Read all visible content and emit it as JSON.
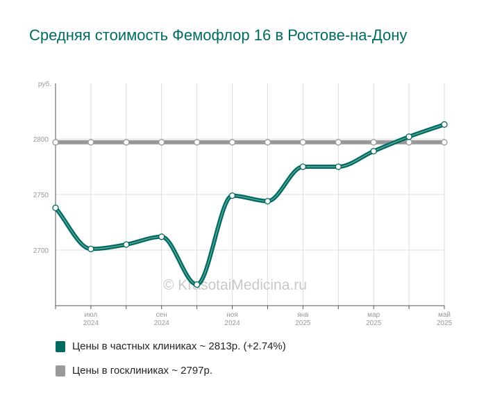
{
  "title": "Средняя стоимость Фемофлор 16 в Ростове-на-Дону",
  "watermark": "© KrasotaiMedicina.ru",
  "chart_data": {
    "type": "line",
    "ylabel": "руб.",
    "ylim": [
      2650,
      2850
    ],
    "yticks": [
      2700,
      2750,
      2800
    ],
    "x": [
      "2024-06",
      "2024-07",
      "2024-08",
      "2024-09",
      "2024-10",
      "2024-11",
      "2024-12",
      "2025-01",
      "2025-02",
      "2025-03",
      "2025-04",
      "2025-05"
    ],
    "xtick_labels": [
      {
        "x": "2024-07",
        "month": "июл",
        "year": "2024"
      },
      {
        "x": "2024-09",
        "month": "сен",
        "year": "2024"
      },
      {
        "x": "2024-11",
        "month": "ноя",
        "year": "2024"
      },
      {
        "x": "2025-01",
        "month": "янв",
        "year": "2025"
      },
      {
        "x": "2025-03",
        "month": "мар",
        "year": "2025"
      },
      {
        "x": "2025-05",
        "month": "май",
        "year": "2025"
      }
    ],
    "grid": true,
    "series": [
      {
        "name": "Цены в частных клиниках ~ 2813р. (+2.74%)",
        "color": "#006b60",
        "values": [
          2738,
          2701,
          2705,
          2712,
          2669,
          2749,
          2744,
          2775,
          2775,
          2789,
          2802,
          2813
        ]
      },
      {
        "name": "Цены в госклиниках ~ 2797р.",
        "color": "#999999",
        "values": [
          2797,
          2797,
          2797,
          2797,
          2797,
          2797,
          2797,
          2797,
          2797,
          2797,
          2797,
          2797
        ]
      }
    ]
  }
}
